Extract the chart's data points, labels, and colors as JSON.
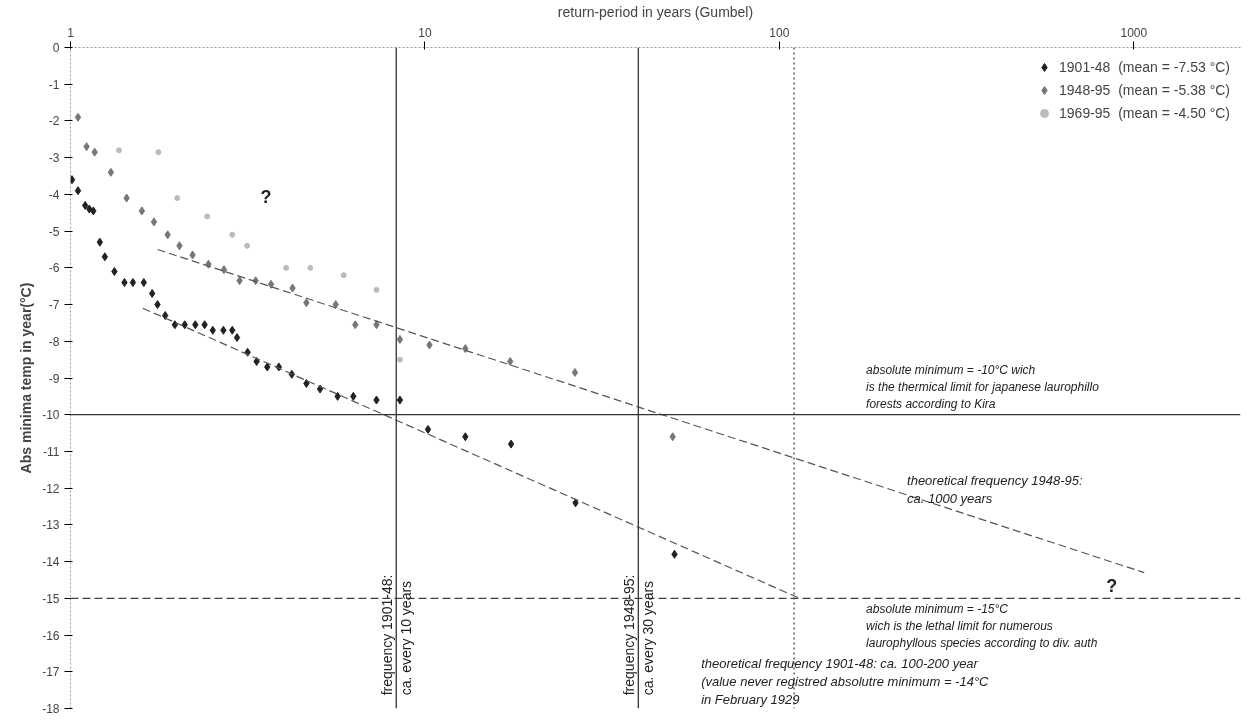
{
  "chart_data": {
    "type": "scatter",
    "xlabel": "return-period in years (Gumbel)",
    "ylabel": "Abs minima temp in year(°C)",
    "log": "x",
    "xlim": [
      1,
      2000
    ],
    "xticks": [
      1,
      10,
      100,
      1000
    ],
    "ylim": [
      -18,
      0
    ],
    "yticks": [
      0,
      -1,
      -2,
      -3,
      -4,
      -5,
      -6,
      -7,
      -8,
      -9,
      -10,
      -11,
      -12,
      -13,
      -14,
      -15,
      -16,
      -17,
      -18
    ],
    "grid": false,
    "legend": "top right",
    "series": [
      {
        "name": "1901-48  (mean = -7.53 °C)",
        "color": "#222222",
        "marker": "diamond",
        "x": [
          1.01,
          1.05,
          1.1,
          1.13,
          1.16,
          1.21,
          1.25,
          1.33,
          1.42,
          1.5,
          1.61,
          1.7,
          1.76,
          1.85,
          1.97,
          2.1,
          2.25,
          2.39,
          2.52,
          2.7,
          2.86,
          2.95,
          3.16,
          3.35,
          3.59,
          3.87,
          4.21,
          4.63,
          5.06,
          5.67,
          6.28,
          7.3,
          8.5,
          10.2,
          13,
          17.5,
          26.6,
          50.6
        ],
        "values": [
          -3.6,
          -3.9,
          -4.3,
          -4.4,
          -4.45,
          -5.3,
          -5.7,
          -6.1,
          -6.4,
          -6.4,
          -6.4,
          -6.7,
          -7.0,
          -7.3,
          -7.55,
          -7.55,
          -7.55,
          -7.55,
          -7.7,
          -7.7,
          -7.7,
          -7.9,
          -8.3,
          -8.55,
          -8.7,
          -8.7,
          -8.9,
          -9.15,
          -9.3,
          -9.5,
          -9.5,
          -9.6,
          -9.6,
          -10.4,
          -10.6,
          -10.8,
          -12.4,
          -13.8
        ]
      },
      {
        "name": "1948-95  (mean = -5.38 °C)",
        "color": "#777777",
        "marker": "diamond",
        "x": [
          1.05,
          1.11,
          1.17,
          1.3,
          1.44,
          1.59,
          1.72,
          1.88,
          2.03,
          2.21,
          2.45,
          2.71,
          3.0,
          3.33,
          3.68,
          4.23,
          4.63,
          5.6,
          6.36,
          7.3,
          8.5,
          10.3,
          13,
          17.4,
          26.5,
          50
        ],
        "values": [
          -1.9,
          -2.7,
          -2.85,
          -3.4,
          -4.1,
          -4.45,
          -4.75,
          -5.1,
          -5.4,
          -5.65,
          -5.9,
          -6.05,
          -6.35,
          -6.35,
          -6.45,
          -6.55,
          -6.95,
          -7.0,
          -7.55,
          -7.55,
          -7.95,
          -8.1,
          -8.2,
          -8.55,
          -8.85,
          -10.6
        ]
      },
      {
        "name": "1969-95  (mean = -4.50 °C)",
        "color": "#bbbbbb",
        "marker": "circle",
        "x": [
          1.37,
          1.77,
          2.0,
          2.43,
          2.86,
          3.15,
          4.06,
          4.75,
          5.9,
          7.3,
          8.5
        ],
        "values": [
          -2.8,
          -2.85,
          -4.1,
          -4.6,
          -5.1,
          -5.4,
          -6.0,
          -6.0,
          -6.2,
          -6.6,
          -8.5
        ]
      },
      {
        "type": "line",
        "color": "#555555",
        "line_style": "dashed",
        "x": [
          1.6,
          114
        ],
        "values": [
          -7.1,
          -15
        ]
      },
      {
        "type": "line",
        "color": "#555555",
        "line_style": "dashed",
        "x": [
          1.76,
          1070
        ],
        "values": [
          -5.5,
          -14.3
        ]
      }
    ],
    "ref_lines": [
      {
        "axis": "y",
        "value": -10,
        "color": "#333333",
        "line_style": "solid",
        "label": "absolute minimum = -10°C wich\nis the thermical limit for japanese laurophillo\nforests according to Kira"
      },
      {
        "axis": "y",
        "value": -15,
        "color": "#444444",
        "line_style": "dashed",
        "label": "absolute minimum = -15°C\nwich is the lethal limit for numerous\nlaurophyllous species according to div. auth"
      },
      {
        "axis": "x",
        "value": 8.3,
        "color": "#333333",
        "line_style": "solid",
        "label": "frequency 1901-48:\nca. every 10 years"
      },
      {
        "axis": "x",
        "value": 40,
        "color": "#333333",
        "line_style": "solid",
        "label": "frequency 1948-95:\nca. every 30 years"
      },
      {
        "axis": "x",
        "value": 110,
        "color": "#444444",
        "line_style": "dotted"
      }
    ],
    "annotations": [
      "?",
      "theoretical frequency 1948-95:\nca. 1000 years",
      "?",
      "theoretical frequency 1901-48: ca. 100-200 year\n(value never registred absolutre minimum = -14°C\nin February 1929"
    ]
  }
}
